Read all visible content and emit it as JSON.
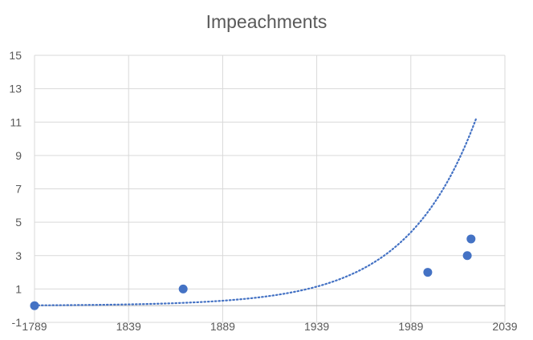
{
  "chart_data": {
    "type": "scatter",
    "title": "Impeachments",
    "xlabel": "",
    "ylabel": "",
    "xlim": [
      1789,
      2039
    ],
    "ylim": [
      -1,
      15
    ],
    "x_ticks": [
      "1789",
      "1839",
      "1889",
      "1939",
      "1989",
      "2039"
    ],
    "y_ticks": [
      "15",
      "13",
      "11",
      "9",
      "7",
      "5",
      "3",
      "1",
      "-1"
    ],
    "grid": true,
    "legend": "none",
    "series": [
      {
        "points": [
          {
            "x": 1789,
            "y": 0
          },
          {
            "x": 1868,
            "y": 1
          },
          {
            "x": 1998,
            "y": 2
          },
          {
            "x": 2019,
            "y": 3
          },
          {
            "x": 2021,
            "y": 4
          }
        ],
        "color": "#4472C4"
      }
    ],
    "trendline": {
      "type": "exponential",
      "x_start": 1789,
      "x_end": 2024,
      "y_start": 0.02,
      "y_end": 11.3,
      "color": "#4472C4",
      "style": "dotted"
    }
  }
}
